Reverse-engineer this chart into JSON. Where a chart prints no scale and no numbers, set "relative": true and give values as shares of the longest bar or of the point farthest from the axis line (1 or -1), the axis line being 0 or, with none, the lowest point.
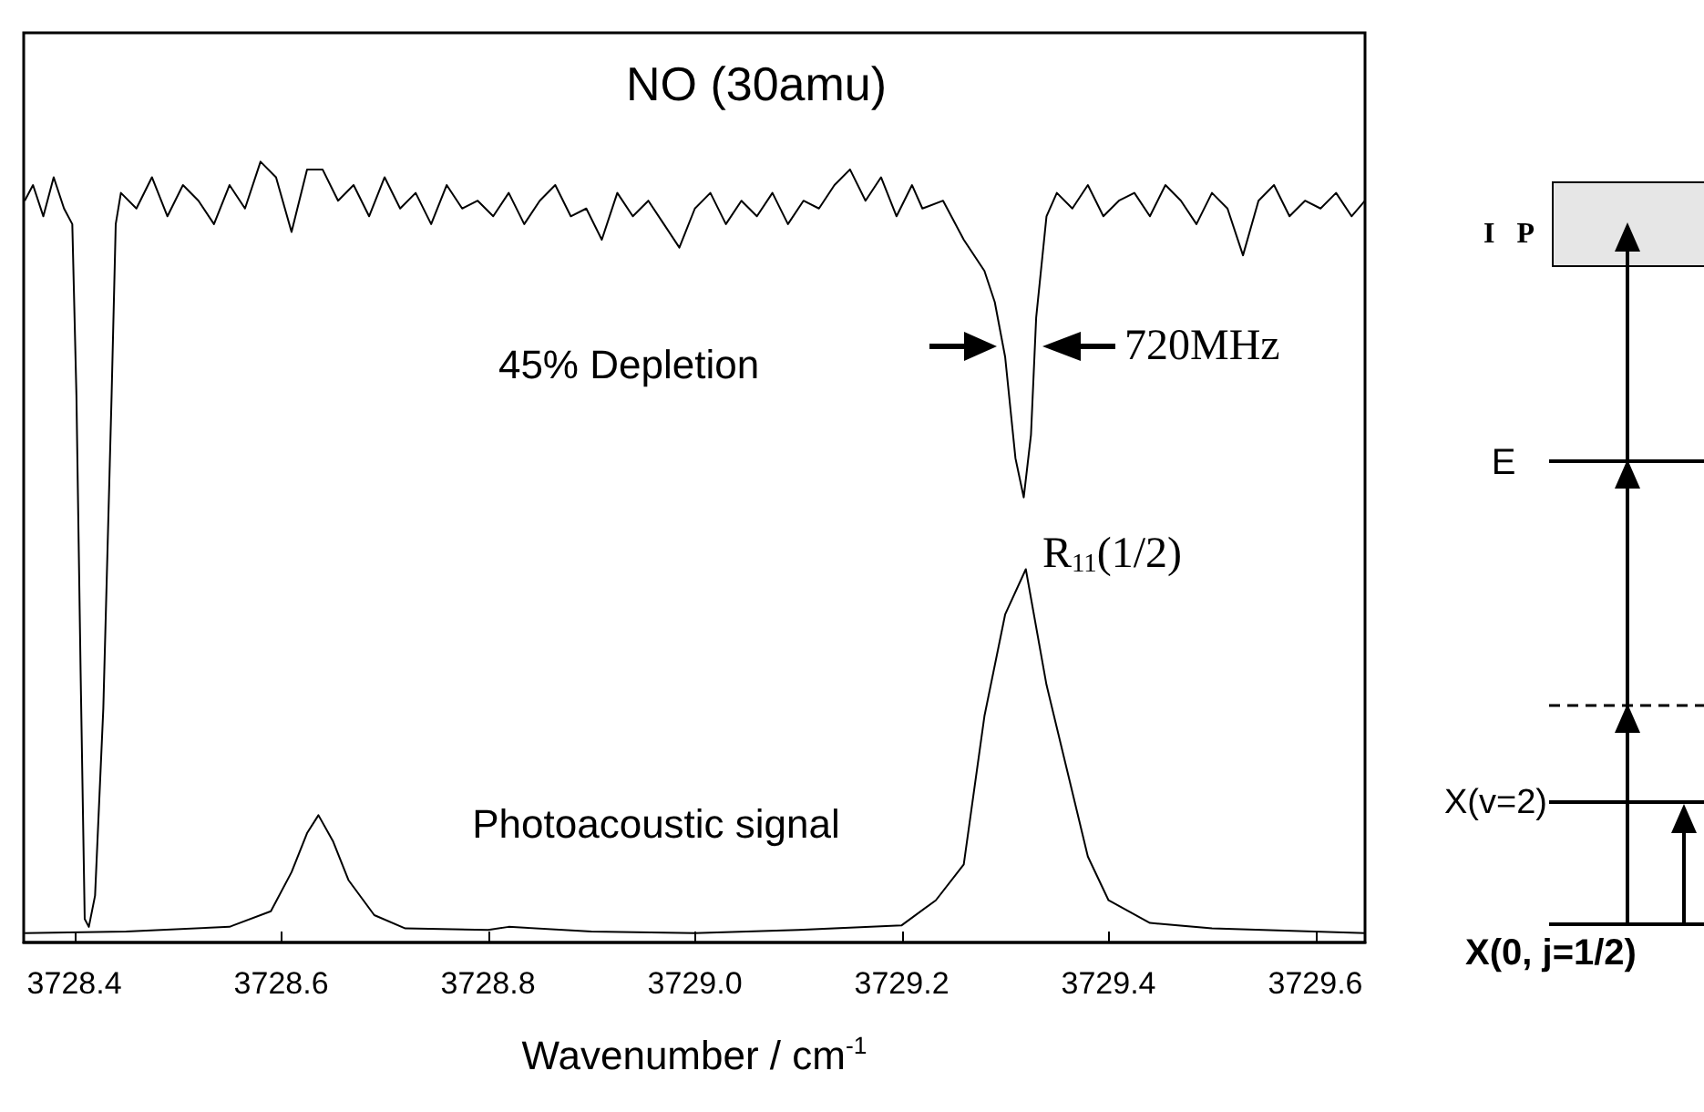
{
  "chart_data": {
    "type": "line",
    "relative": true,
    "title": "NO (30amu)",
    "xlabel": "Wavenumber / cm$^{-1}$",
    "xlim": [
      3728.351,
      3729.648
    ],
    "xticks": [
      3728.4,
      3728.6,
      3728.8,
      {
        "value": 3729.0,
        "label": "3729.0"
      },
      3729.2,
      3729.4,
      3729.6
    ],
    "annotations": [
      "45% Depletion",
      "720MHz",
      "R$_{11}$(1/2)",
      "Photoacoustic signal",
      "I P",
      "E",
      "X(v=2)",
      "X(0, j=1/2)"
    ],
    "series": [
      {
        "color": "#000000",
        "x": [
          3728.352,
          3728.36,
          3728.37,
          3728.38,
          3728.39,
          3728.398,
          3728.402,
          3728.406,
          3728.41,
          3728.414,
          3728.42,
          3728.428,
          3728.436,
          3728.44,
          3728.445,
          3728.46,
          3728.475,
          3728.49,
          3728.505,
          3728.52,
          3728.535,
          3728.55,
          3728.565,
          3728.58,
          3728.595,
          3728.61,
          3728.625,
          3728.64,
          3728.655,
          3728.67,
          3728.685,
          3728.7,
          3728.715,
          3728.73,
          3728.745,
          3728.76,
          3728.775,
          3728.79,
          3728.805,
          3728.82,
          3728.835,
          3728.85,
          3728.865,
          3728.88,
          3728.895,
          3728.91,
          3728.925,
          3728.94,
          3728.955,
          3728.97,
          3728.985,
          3729.0,
          3729.015,
          3729.03,
          3729.045,
          3729.06,
          3729.075,
          3729.09,
          3729.105,
          3729.12,
          3729.135,
          3729.15,
          3729.165,
          3729.18,
          3729.195,
          3729.21,
          3729.22,
          3729.24,
          3729.26,
          3729.28,
          3729.29,
          3729.3,
          3729.31,
          3729.318,
          3729.325,
          3729.33,
          3729.34,
          3729.35,
          3729.365,
          3729.38,
          3729.395,
          3729.41,
          3729.425,
          3729.44,
          3729.455,
          3729.47,
          3729.485,
          3729.5,
          3729.515,
          3729.53,
          3729.545,
          3729.56,
          3729.575,
          3729.59,
          3729.605,
          3729.62,
          3729.635,
          3729.648
        ],
        "values": [
          0.95,
          0.97,
          0.93,
          0.98,
          0.94,
          0.92,
          0.7,
          0.35,
          0.03,
          0.02,
          0.06,
          0.3,
          0.7,
          0.92,
          0.96,
          0.94,
          0.98,
          0.93,
          0.97,
          0.95,
          0.92,
          0.97,
          0.94,
          1,
          0.98,
          0.91,
          0.99,
          0.99,
          0.95,
          0.97,
          0.93,
          0.98,
          0.94,
          0.96,
          0.92,
          0.97,
          0.94,
          0.95,
          0.93,
          0.96,
          0.92,
          0.95,
          0.97,
          0.93,
          0.94,
          0.9,
          0.96,
          0.93,
          0.95,
          0.92,
          0.89,
          0.94,
          0.96,
          0.92,
          0.95,
          0.93,
          0.96,
          0.92,
          0.95,
          0.94,
          0.97,
          0.99,
          0.95,
          0.98,
          0.93,
          0.97,
          0.94,
          0.95,
          0.9,
          0.86,
          0.82,
          0.75,
          0.62,
          0.57,
          0.65,
          0.8,
          0.93,
          0.96,
          0.94,
          0.97,
          0.93,
          0.95,
          0.96,
          0.93,
          0.97,
          0.95,
          0.92,
          0.96,
          0.94,
          0.88,
          0.95,
          0.97,
          0.93,
          0.95,
          0.94,
          0.96,
          0.93,
          0.95
        ]
      },
      {
        "color": "#000000",
        "x": [
          3728.352,
          3728.45,
          3728.55,
          3728.59,
          3728.61,
          3728.625,
          3728.636,
          3728.65,
          3728.665,
          3728.69,
          3728.72,
          3728.8,
          3728.82,
          3728.9,
          3729.0,
          3729.1,
          3729.2,
          3729.233,
          3729.26,
          3729.28,
          3729.3,
          3729.32,
          3729.34,
          3729.36,
          3729.38,
          3729.4,
          3729.44,
          3729.5,
          3729.648
        ],
        "values": [
          0.012,
          0.014,
          0.02,
          0.04,
          0.09,
          0.14,
          0.163,
          0.13,
          0.08,
          0.035,
          0.018,
          0.016,
          0.02,
          0.014,
          0.012,
          0.016,
          0.022,
          0.054,
          0.1,
          0.29,
          0.42,
          0.478,
          0.33,
          0.22,
          0.11,
          0.054,
          0.025,
          0.018,
          0.012
        ]
      }
    ]
  }
}
